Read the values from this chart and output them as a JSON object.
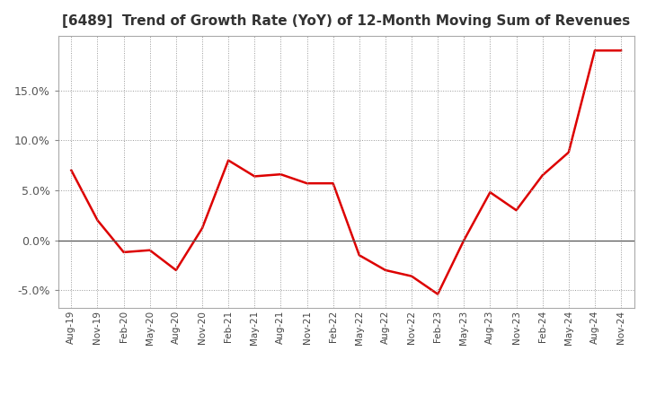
{
  "title": "[6489]  Trend of Growth Rate (YoY) of 12-Month Moving Sum of Revenues",
  "title_fontsize": 11,
  "line_color": "#dd0000",
  "line_width": 1.8,
  "background_color": "#ffffff",
  "plot_bg_color": "#ffffff",
  "grid_color": "#999999",
  "ylim": [
    -0.068,
    0.205
  ],
  "yticks": [
    -0.05,
    0.0,
    0.05,
    0.1,
    0.15
  ],
  "x_labels": [
    "Aug-19",
    "Nov-19",
    "Feb-20",
    "May-20",
    "Aug-20",
    "Nov-20",
    "Feb-21",
    "May-21",
    "Aug-21",
    "Nov-21",
    "Feb-22",
    "May-22",
    "Aug-22",
    "Nov-22",
    "Feb-23",
    "May-23",
    "Aug-23",
    "Nov-23",
    "Feb-24",
    "May-24",
    "Aug-24",
    "Nov-24"
  ],
  "y_values": [
    0.07,
    0.02,
    -0.012,
    -0.01,
    -0.03,
    0.012,
    0.08,
    0.064,
    0.066,
    0.057,
    0.057,
    -0.015,
    -0.03,
    -0.036,
    -0.054,
    0.0,
    0.048,
    0.03,
    0.065,
    0.088,
    0.19,
    0.19
  ]
}
